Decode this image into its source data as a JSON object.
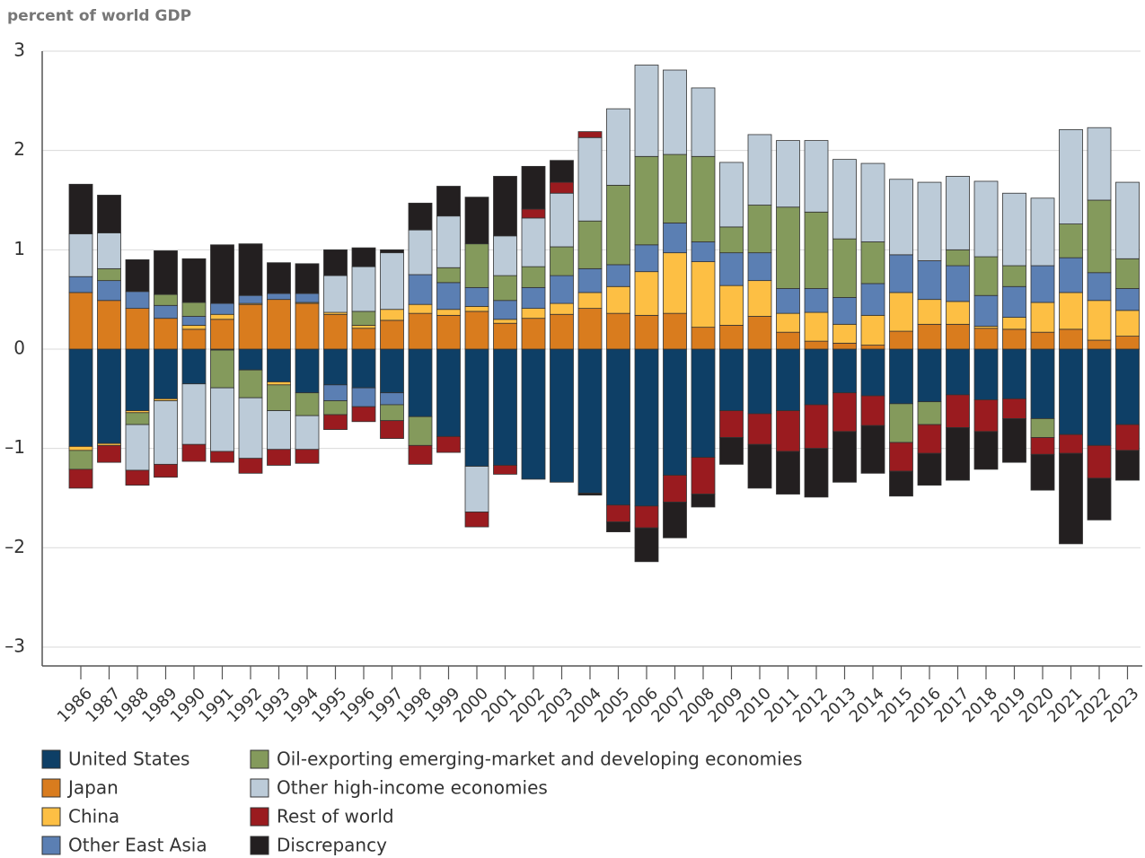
{
  "chart_data": {
    "type": "stacked_bar",
    "y_label": "percent of world GDP",
    "categories": [
      "1986",
      "1987",
      "1988",
      "1989",
      "1990",
      "1991",
      "1992",
      "1993",
      "1994",
      "1995",
      "1996",
      "1997",
      "1998",
      "1999",
      "2000",
      "2001",
      "2002",
      "2003",
      "2004",
      "2005",
      "2006",
      "2007",
      "2008",
      "2009",
      "2010",
      "2011",
      "2012",
      "2013",
      "2014",
      "2015",
      "2016",
      "2017",
      "2018",
      "2019",
      "2020",
      "2021",
      "2022",
      "2023"
    ],
    "ylim": [
      -3.19,
      3
    ],
    "yticks": [
      {
        "value": -3,
        "label": "–3"
      },
      {
        "value": -2,
        "label": "–2"
      },
      {
        "value": -1,
        "label": "–1"
      },
      0,
      1,
      2,
      3
    ],
    "grid": true,
    "series": [
      {
        "name": "United States",
        "color": "#0e3f66",
        "values": [
          -0.98,
          -0.95,
          -0.62,
          -0.5,
          -0.35,
          -0.01,
          -0.21,
          -0.33,
          -0.44,
          -0.36,
          -0.39,
          -0.44,
          -0.68,
          -0.88,
          -1.18,
          -1.17,
          -1.31,
          -1.34,
          -1.45,
          -1.57,
          -1.58,
          -1.27,
          -1.09,
          -0.62,
          -0.65,
          -0.62,
          -0.56,
          -0.44,
          -0.47,
          -0.55,
          -0.53,
          -0.46,
          -0.51,
          -0.5,
          -0.7,
          -0.86,
          -0.97,
          -0.76
        ]
      },
      {
        "name": "Japan",
        "color": "#d97c1e",
        "values": [
          0.57,
          0.49,
          0.41,
          0.31,
          0.2,
          0.3,
          0.45,
          0.5,
          0.46,
          0.35,
          0.21,
          0.29,
          0.36,
          0.34,
          0.38,
          0.26,
          0.31,
          0.35,
          0.41,
          0.36,
          0.34,
          0.36,
          0.22,
          0.24,
          0.33,
          0.17,
          0.08,
          0.06,
          0.04,
          0.18,
          0.25,
          0.25,
          0.21,
          0.2,
          0.17,
          0.2,
          0.09,
          0.13
        ]
      },
      {
        "name": "China",
        "color": "#fdbf44",
        "values": [
          -0.04,
          -0.02,
          -0.02,
          -0.02,
          0.04,
          0.05,
          0.01,
          -0.03,
          0.01,
          0.02,
          0.03,
          0.11,
          0.09,
          0.06,
          0.05,
          0.04,
          0.1,
          0.11,
          0.16,
          0.27,
          0.44,
          0.61,
          0.66,
          0.4,
          0.36,
          0.19,
          0.29,
          0.19,
          0.3,
          0.39,
          0.25,
          0.23,
          0.02,
          0.12,
          0.3,
          0.37,
          0.4,
          0.26
        ]
      },
      {
        "name": "Other East Asia",
        "color": "#5b7fb3",
        "values": [
          0.16,
          0.2,
          0.17,
          0.13,
          0.09,
          0.11,
          0.08,
          0.06,
          0.09,
          -0.16,
          -0.19,
          -0.12,
          0.3,
          0.27,
          0.19,
          0.19,
          0.21,
          0.28,
          0.24,
          0.22,
          0.27,
          0.3,
          0.2,
          0.33,
          0.28,
          0.25,
          0.24,
          0.27,
          0.32,
          0.38,
          0.39,
          0.36,
          0.31,
          0.31,
          0.37,
          0.35,
          0.28,
          0.22
        ]
      },
      {
        "name": "Oil-exporting emerging-market and developing economies",
        "color": "#849a5c",
        "values": [
          -0.19,
          0.12,
          -0.12,
          0.11,
          0.14,
          -0.38,
          -0.28,
          -0.26,
          -0.23,
          -0.14,
          0.14,
          -0.16,
          -0.29,
          0.15,
          0.44,
          0.25,
          0.21,
          0.29,
          0.48,
          0.8,
          0.89,
          0.69,
          0.86,
          0.26,
          0.48,
          0.82,
          0.77,
          0.59,
          0.42,
          -0.39,
          -0.23,
          0.16,
          0.39,
          0.21,
          -0.19,
          0.34,
          0.73,
          0.3
        ]
      },
      {
        "name": "Other high-income economies",
        "color": "#bccbd8",
        "values": [
          0.43,
          0.36,
          -0.46,
          -0.64,
          -0.61,
          -0.64,
          -0.61,
          -0.39,
          -0.34,
          0.37,
          0.45,
          0.57,
          0.45,
          0.52,
          -0.46,
          0.4,
          0.49,
          0.54,
          0.84,
          0.77,
          0.92,
          0.85,
          0.69,
          0.65,
          0.71,
          0.67,
          0.72,
          0.8,
          0.79,
          0.76,
          0.79,
          0.74,
          0.76,
          0.73,
          0.68,
          0.95,
          0.73,
          0.77
        ]
      },
      {
        "name": "Rest of world",
        "color": "#9a1b1f",
        "values": [
          -0.19,
          -0.17,
          -0.15,
          -0.13,
          -0.17,
          -0.11,
          -0.15,
          -0.16,
          -0.14,
          -0.15,
          -0.15,
          -0.18,
          -0.19,
          -0.16,
          -0.15,
          -0.09,
          0.09,
          0.11,
          0.06,
          -0.17,
          -0.22,
          -0.27,
          -0.37,
          -0.27,
          -0.31,
          -0.41,
          -0.44,
          -0.39,
          -0.3,
          -0.29,
          -0.29,
          -0.33,
          -0.32,
          -0.2,
          -0.17,
          -0.19,
          -0.33,
          -0.26
        ]
      },
      {
        "name": "Discrepancy",
        "color": "#231f20",
        "values": [
          0.5,
          0.38,
          0.32,
          0.44,
          0.44,
          0.59,
          0.52,
          0.31,
          0.3,
          0.26,
          0.19,
          0.03,
          0.27,
          0.3,
          0.47,
          0.6,
          0.43,
          0.22,
          -0.02,
          -0.1,
          -0.34,
          -0.36,
          -0.13,
          -0.27,
          -0.44,
          -0.43,
          -0.49,
          -0.51,
          -0.48,
          -0.25,
          -0.32,
          -0.53,
          -0.38,
          -0.44,
          -0.36,
          -0.91,
          -0.42,
          -0.3
        ]
      }
    ]
  }
}
